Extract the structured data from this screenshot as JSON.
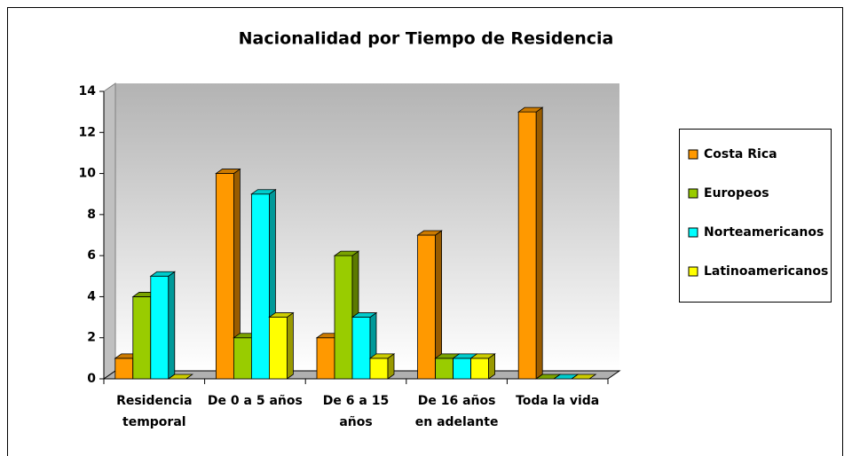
{
  "chart_data": {
    "type": "bar3d",
    "title": "Nacionalidad por Tiempo de Residencia",
    "categories": [
      "Residencia temporal",
      "De 0 a 5 años",
      "De 6 a 15 años",
      "De 16 años en adelante",
      "Toda la vida"
    ],
    "series": [
      {
        "name": "Costa Rica",
        "color": "#ff9900",
        "values": [
          1,
          10,
          2,
          7,
          13
        ]
      },
      {
        "name": "Europeos",
        "color": "#99cc00",
        "values": [
          4,
          2,
          6,
          1,
          0
        ]
      },
      {
        "name": "Norteamericanos",
        "color": "#00ffff",
        "values": [
          5,
          9,
          3,
          1,
          0
        ]
      },
      {
        "name": "Latinoamericanos",
        "color": "#ffff00",
        "values": [
          0,
          3,
          1,
          1,
          0
        ]
      }
    ],
    "ylim": [
      0,
      14
    ],
    "yticks": [
      0,
      2,
      4,
      6,
      8,
      10,
      12,
      14
    ],
    "legend": "right"
  }
}
